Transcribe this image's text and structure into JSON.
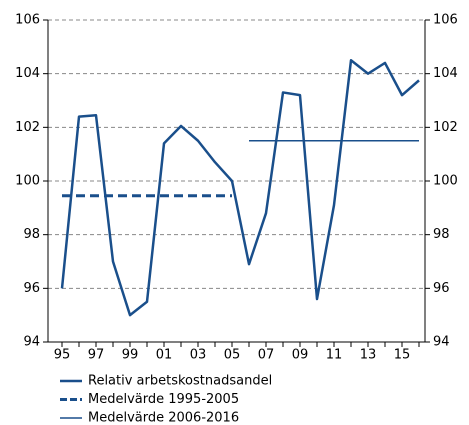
{
  "chart_data": {
    "type": "line",
    "categories": [
      "95",
      null,
      "97",
      null,
      "99",
      null,
      "01",
      null,
      "03",
      null,
      "05",
      null,
      "07",
      null,
      "09",
      null,
      "11",
      null,
      "13",
      null,
      "15",
      null
    ],
    "series": [
      {
        "name": "Relativ arbetskostnadsandel",
        "color": "#1a4f8b",
        "linestyle": "solid",
        "values": [
          96.0,
          102.4,
          102.45,
          97.0,
          95.0,
          95.5,
          101.4,
          102.05,
          101.5,
          100.7,
          100.0,
          96.9,
          98.8,
          103.3,
          103.2,
          95.6,
          99.1,
          104.5,
          104.0,
          104.4,
          103.2,
          103.75
        ]
      },
      {
        "name": "Medelvärde 1995-2005",
        "color": "#1a4f8b",
        "linestyle": "dashed",
        "values": [
          99.45,
          99.45,
          99.45,
          99.45,
          99.45,
          99.45,
          99.45,
          99.45,
          99.45,
          99.45,
          99.45,
          null,
          null,
          null,
          null,
          null,
          null,
          null,
          null,
          null,
          null,
          null
        ]
      },
      {
        "name": "Medelvärde 2006-2016",
        "color": "#1a4f8b",
        "linestyle": "thin",
        "values": [
          null,
          null,
          null,
          null,
          null,
          null,
          null,
          null,
          null,
          null,
          null,
          101.5,
          101.5,
          101.5,
          101.5,
          101.5,
          101.5,
          101.5,
          101.5,
          101.5,
          101.5,
          101.5
        ]
      }
    ],
    "ylim": [
      94,
      106
    ],
    "yticks": [
      94,
      96,
      98,
      100,
      102,
      104,
      106
    ],
    "y2lim": [
      94,
      106
    ],
    "y2ticks": [
      94,
      96,
      98,
      100,
      102,
      104,
      106
    ],
    "grid": true,
    "legend": "bottom"
  }
}
